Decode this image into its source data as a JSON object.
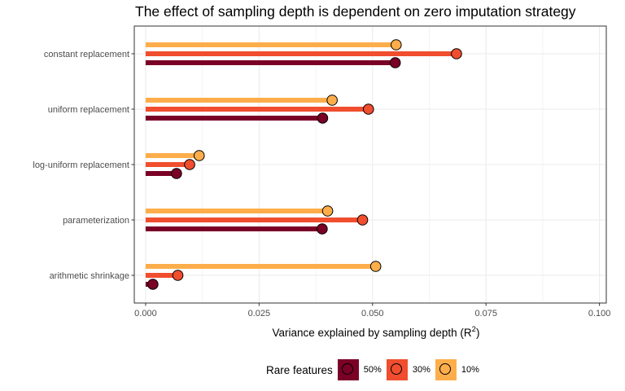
{
  "chart_data": {
    "type": "lollipop",
    "title": "The effect of sampling depth is dependent on zero imputation strategy",
    "xlabel": "Variance explained by sampling depth",
    "xlabel_superscript_base": "R",
    "xlabel_superscript_exp": "2",
    "ylabel": "",
    "xlim": [
      -0.0025,
      0.1015
    ],
    "xticks": [
      "0.000",
      "0.025",
      "0.050",
      "0.075",
      "0.100"
    ],
    "xtick_values": [
      0,
      0.025,
      0.05,
      0.075,
      0.1
    ],
    "categories": [
      "constant replacement",
      "uniform replacement",
      "log-uniform replacement",
      "parameterization",
      "arithmetic shrinkage"
    ],
    "series": [
      {
        "name": "10%",
        "color": "#fdae4b",
        "values": [
          0.0552,
          0.0411,
          0.0118,
          0.0401,
          0.0507
        ]
      },
      {
        "name": "30%",
        "color": "#f04e2e",
        "values": [
          0.0685,
          0.0491,
          0.0097,
          0.0478,
          0.0071
        ]
      },
      {
        "name": "50%",
        "color": "#7a0026",
        "values": [
          0.055,
          0.039,
          0.0068,
          0.0389,
          0.0016
        ]
      }
    ],
    "legend": {
      "title": "Rare features",
      "position": "bottom",
      "order": [
        "50%",
        "30%",
        "10%"
      ]
    },
    "grid": true
  }
}
